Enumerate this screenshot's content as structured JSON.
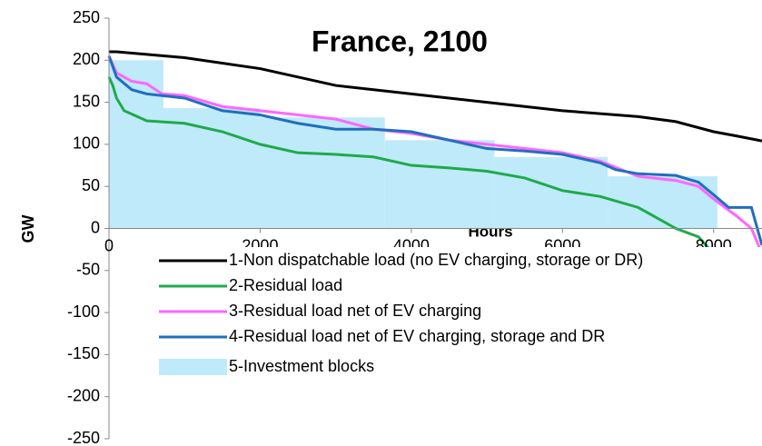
{
  "chart_data": {
    "type": "line",
    "title": "France, 2100",
    "xlabel": "Hours",
    "ylabel": "GW",
    "xlim": [
      0,
      8640
    ],
    "ylim": [
      -250,
      250
    ],
    "xticks": [
      0,
      2000,
      4000,
      6000,
      8000
    ],
    "yticks": [
      -250,
      -200,
      -150,
      -100,
      -50,
      0,
      50,
      100,
      150,
      200,
      250
    ],
    "legend": "lower left",
    "series": [
      {
        "name": "1-Non dispatchable load (no EV charging, storage or DR)",
        "color": "#000000",
        "x": [
          0,
          100,
          500,
          1000,
          2000,
          3000,
          4000,
          5000,
          6000,
          7000,
          7500,
          8000,
          8300,
          8640
        ],
        "values": [
          210,
          210,
          207,
          203,
          190,
          170,
          160,
          150,
          140,
          133,
          127,
          115,
          110,
          104
        ]
      },
      {
        "name": "2-Residual load",
        "color": "#1faa4a",
        "x": [
          0,
          50,
          100,
          200,
          500,
          1000,
          1500,
          2000,
          2500,
          3000,
          3500,
          4000,
          4500,
          5000,
          5500,
          6000,
          6500,
          7000,
          7200,
          7500,
          7800,
          8000,
          8200,
          8400,
          8640
        ],
        "values": [
          180,
          170,
          155,
          140,
          128,
          125,
          115,
          100,
          90,
          88,
          85,
          75,
          72,
          68,
          60,
          45,
          38,
          25,
          15,
          0,
          -10,
          -30,
          -50,
          -65,
          -90
        ]
      },
      {
        "name": "3-Residual load net of EV charging",
        "color": "#ff66ff",
        "x": [
          0,
          100,
          300,
          500,
          700,
          1000,
          1500,
          2000,
          3000,
          3500,
          4000,
          4500,
          5000,
          5500,
          6000,
          6500,
          7000,
          7500,
          7800,
          8000,
          8300,
          8500,
          8640
        ],
        "values": [
          205,
          185,
          175,
          172,
          160,
          158,
          145,
          140,
          130,
          118,
          113,
          105,
          100,
          95,
          90,
          80,
          62,
          57,
          50,
          35,
          15,
          0,
          -30
        ]
      },
      {
        "name": "4-Residual load net of EV charging, storage and DR",
        "color": "#1f6fc0",
        "x": [
          0,
          100,
          300,
          500,
          1000,
          1500,
          2000,
          2500,
          3000,
          3500,
          4000,
          4500,
          5000,
          5500,
          6000,
          6500,
          6700,
          7000,
          7500,
          7800,
          8000,
          8200,
          8500,
          8640
        ],
        "values": [
          205,
          180,
          165,
          160,
          155,
          140,
          135,
          125,
          118,
          118,
          115,
          105,
          95,
          92,
          88,
          78,
          70,
          65,
          63,
          55,
          40,
          25,
          25,
          -20
        ]
      },
      {
        "name": "5-Investment blocks",
        "color": "#bfeaf9",
        "kind": "blocks",
        "bins": [
          0,
          720,
          2000,
          3650,
          5100,
          6600,
          8050
        ],
        "values": [
          200,
          143,
          132,
          105,
          85,
          62
        ]
      }
    ]
  }
}
